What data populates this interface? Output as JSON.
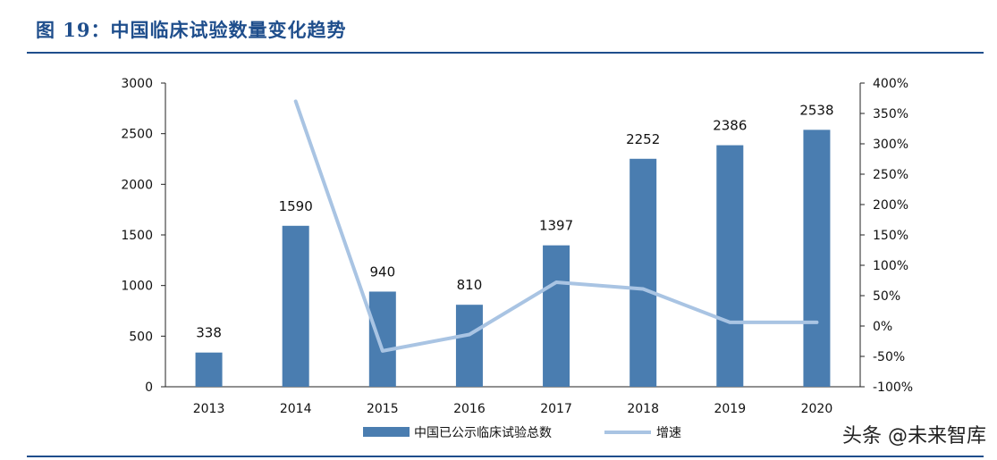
{
  "figure": {
    "title": "图 19：中国临床试验数量变化趋势"
  },
  "watermark": "头条 @未来智库",
  "colors": {
    "title": "#1f4e8c",
    "bar": "#4a7db0",
    "line": "#a9c4e3",
    "axis": "#222222"
  },
  "chart_data": {
    "type": "bar",
    "categories": [
      "2013",
      "2014",
      "2015",
      "2016",
      "2017",
      "2018",
      "2019",
      "2020"
    ],
    "series": [
      {
        "name": "中国已公示临床试验总数",
        "type": "bar",
        "axis": "left",
        "values": [
          338,
          1590,
          940,
          810,
          1397,
          2252,
          2386,
          2538
        ],
        "data_labels": [
          "338",
          "1590",
          "940",
          "810",
          "1397",
          "2252",
          "2386",
          "2538"
        ]
      },
      {
        "name": "增速",
        "type": "line",
        "axis": "right",
        "values": [
          null,
          370,
          -41,
          -14,
          72,
          61,
          6,
          6
        ]
      }
    ],
    "y_left": {
      "range": [
        0,
        3000
      ],
      "ticks": [
        0,
        500,
        1000,
        1500,
        2000,
        2500,
        3000
      ],
      "tick_labels": [
        "0",
        "500",
        "1000",
        "1500",
        "2000",
        "2500",
        "3000"
      ]
    },
    "y_right": {
      "range": [
        -100,
        400
      ],
      "ticks": [
        -100,
        -50,
        0,
        50,
        100,
        150,
        200,
        250,
        300,
        350,
        400
      ],
      "tick_labels": [
        "-100%",
        "-50%",
        "0%",
        "50%",
        "100%",
        "150%",
        "200%",
        "250%",
        "300%",
        "350%",
        "400%"
      ]
    },
    "grid": false,
    "legend_position": "bottom-center"
  }
}
